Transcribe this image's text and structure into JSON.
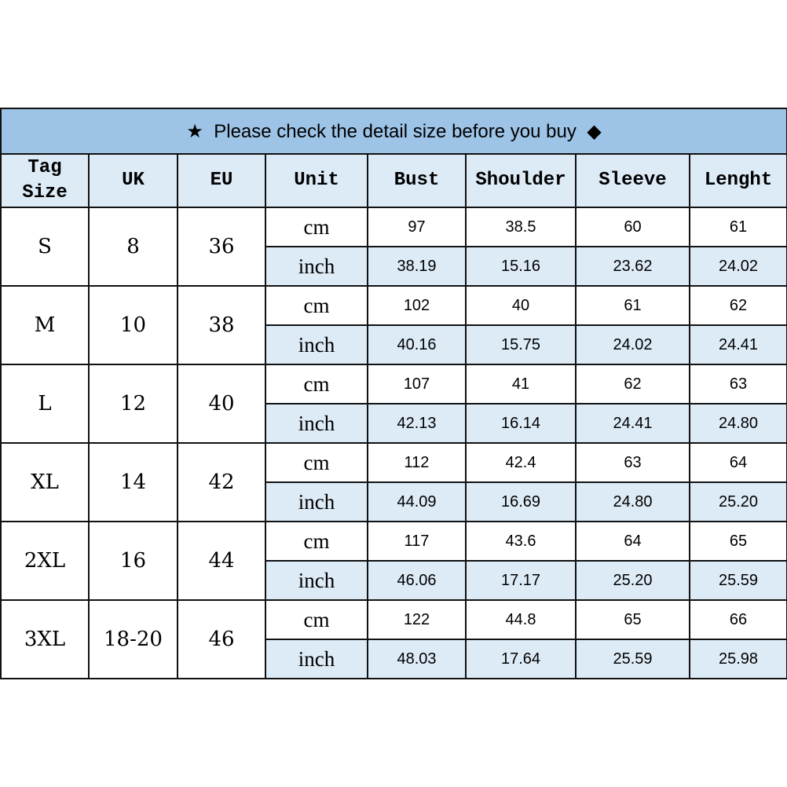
{
  "banner": {
    "star_icon": "★",
    "text": "Please check the detail size before you buy",
    "diamond_icon": "◆"
  },
  "headers": [
    "Tag Size",
    "UK",
    "EU",
    "Unit",
    "Bust",
    "Shoulder",
    "Sleeve",
    "Lenght"
  ],
  "rows": [
    {
      "tag": "S",
      "uk": "8",
      "eu": "36",
      "cm": [
        "97",
        "38.5",
        "60",
        "61"
      ],
      "inch": [
        "38.19",
        "15.16",
        "23.62",
        "24.02"
      ]
    },
    {
      "tag": "M",
      "uk": "10",
      "eu": "38",
      "cm": [
        "102",
        "40",
        "61",
        "62"
      ],
      "inch": [
        "40.16",
        "15.75",
        "24.02",
        "24.41"
      ]
    },
    {
      "tag": "L",
      "uk": "12",
      "eu": "40",
      "cm": [
        "107",
        "41",
        "62",
        "63"
      ],
      "inch": [
        "42.13",
        "16.14",
        "24.41",
        "24.80"
      ]
    },
    {
      "tag": "XL",
      "uk": "14",
      "eu": "42",
      "cm": [
        "112",
        "42.4",
        "63",
        "64"
      ],
      "inch": [
        "44.09",
        "16.69",
        "24.80",
        "25.20"
      ]
    },
    {
      "tag": "2XL",
      "uk": "16",
      "eu": "44",
      "cm": [
        "117",
        "43.6",
        "64",
        "65"
      ],
      "inch": [
        "46.06",
        "17.17",
        "25.20",
        "25.59"
      ]
    },
    {
      "tag": "3XL",
      "uk": "18-20",
      "eu": "46",
      "cm": [
        "122",
        "44.8",
        "65",
        "66"
      ],
      "inch": [
        "48.03",
        "17.64",
        "25.59",
        "25.98"
      ]
    }
  ],
  "units": {
    "cm": "cm",
    "inch": "inch"
  },
  "colors": {
    "banner": "#9DC3E6",
    "light_cell": "#DDEBF7",
    "border": "#111111"
  }
}
